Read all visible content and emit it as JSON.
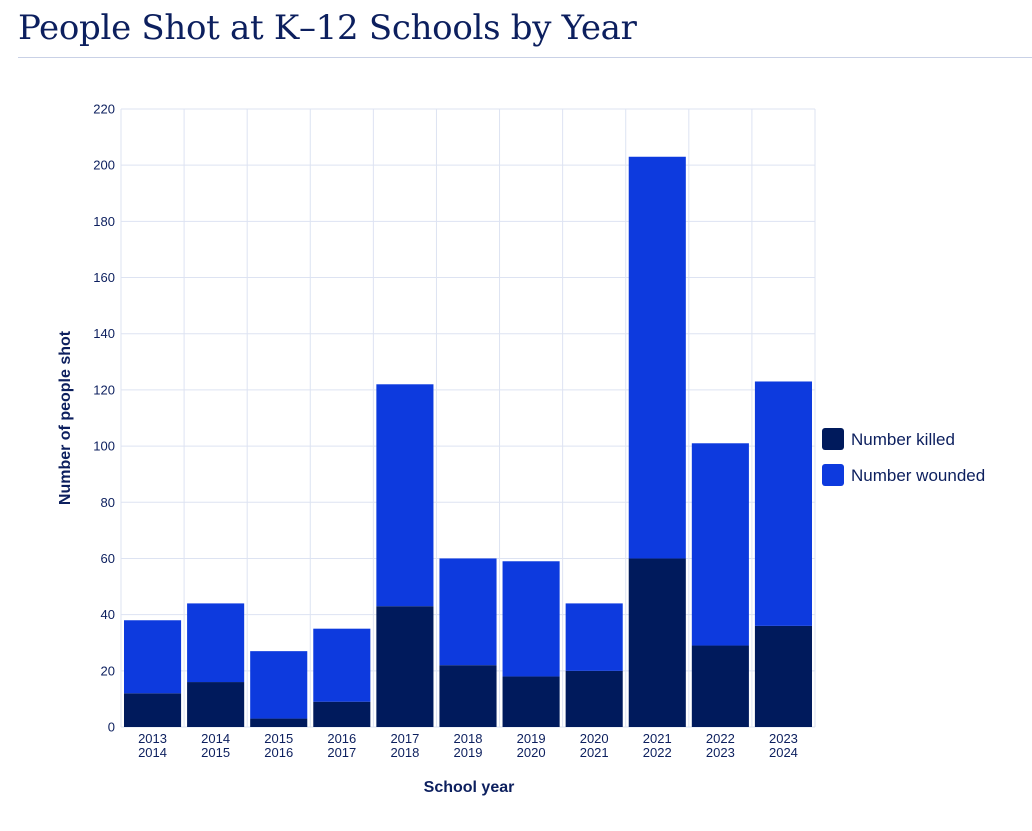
{
  "page": {
    "title": "People Shot at K–12 Schools by Year"
  },
  "chart_data": {
    "type": "bar",
    "stacked": true,
    "categories": [
      [
        "2013",
        "2014"
      ],
      [
        "2014",
        "2015"
      ],
      [
        "2015",
        "2016"
      ],
      [
        "2016",
        "2017"
      ],
      [
        "2017",
        "2018"
      ],
      [
        "2018",
        "2019"
      ],
      [
        "2019",
        "2020"
      ],
      [
        "2020",
        "2021"
      ],
      [
        "2021",
        "2022"
      ],
      [
        "2022",
        "2023"
      ],
      [
        "2023",
        "2024"
      ]
    ],
    "series": [
      {
        "name": "Number killed",
        "color": "#001a5c",
        "values": [
          12,
          16,
          3,
          9,
          43,
          22,
          18,
          20,
          60,
          29,
          36
        ]
      },
      {
        "name": "Number wounded",
        "color": "#0d3ade",
        "values": [
          26,
          28,
          24,
          26,
          79,
          38,
          41,
          24,
          143,
          72,
          87
        ]
      }
    ],
    "xlabel": "School year",
    "ylabel": "Number of people shot",
    "ylim": [
      0,
      220
    ],
    "yticks": [
      0,
      20,
      40,
      60,
      80,
      100,
      120,
      140,
      160,
      180,
      200,
      220
    ],
    "grid": true,
    "legend": "right"
  }
}
